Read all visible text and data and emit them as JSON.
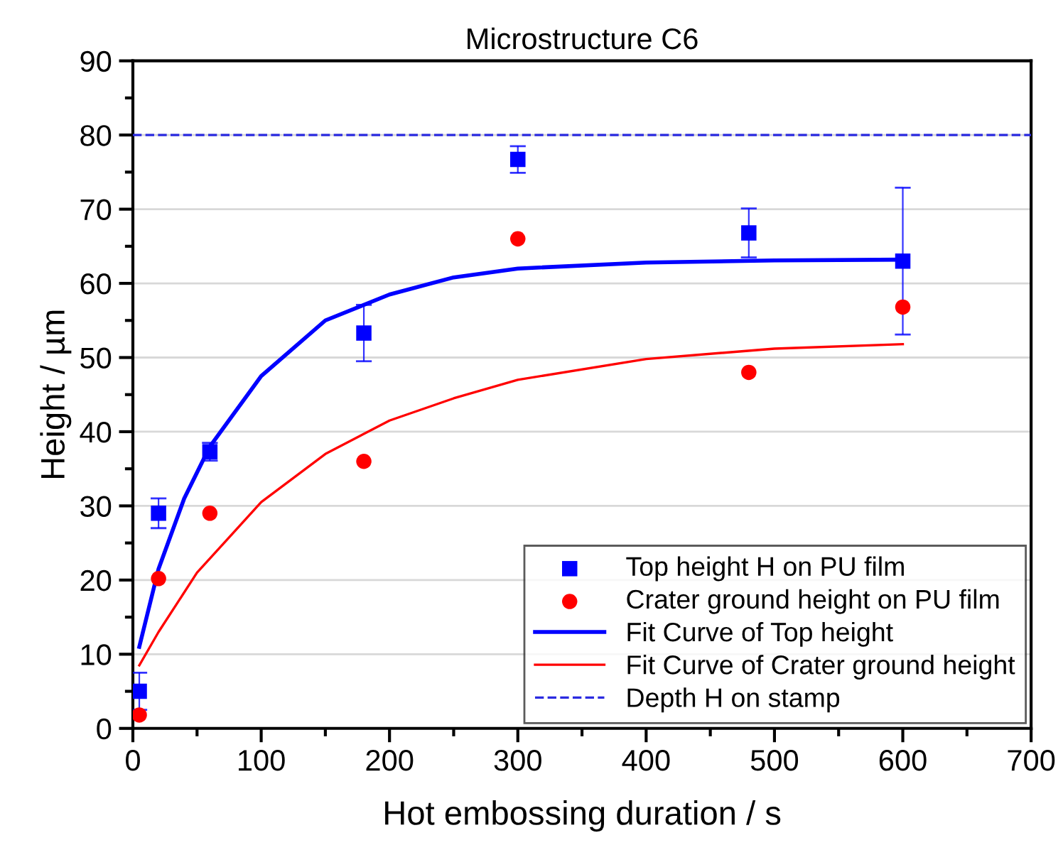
{
  "chart_data": {
    "type": "scatter",
    "title": "Microstructure C6",
    "xlabel": "Hot embossing duration / s",
    "ylabel": "Height / µm",
    "xlim": [
      0,
      700
    ],
    "xticks": [
      0,
      100,
      200,
      300,
      400,
      500,
      600,
      700
    ],
    "ylim": [
      0,
      90
    ],
    "yticks": [
      0,
      10,
      20,
      30,
      40,
      50,
      60,
      70,
      80,
      90
    ],
    "grid": "y",
    "legend": "bottom right",
    "series": [
      {
        "name": "Top height H on PU film",
        "marker": "square",
        "color": "#0000ff",
        "x": [
          5,
          20,
          60,
          180,
          300,
          480,
          600
        ],
        "values": [
          5,
          29,
          37.3,
          53.3,
          76.7,
          66.8,
          63
        ],
        "errors": [
          2.5,
          2,
          1.2,
          3.8,
          1.8,
          3.3,
          9.9
        ]
      },
      {
        "name": "Crater ground height on PU film",
        "marker": "circle",
        "color": "#ff0000",
        "x": [
          5,
          20,
          60,
          180,
          300,
          480,
          600
        ],
        "values": [
          1.8,
          20.2,
          29,
          36,
          66,
          48,
          56.8
        ]
      },
      {
        "name": "Fit Curve of Top height",
        "type": "line",
        "line_style": "solid",
        "color": "#0000ff",
        "x": [
          5,
          20,
          40,
          60,
          100,
          150,
          200,
          250,
          300,
          400,
          500,
          600
        ],
        "values": [
          11,
          21.5,
          31,
          38,
          47.5,
          55,
          58.5,
          60.8,
          62,
          62.8,
          63.1,
          63.2
        ]
      },
      {
        "name": "Fit Curve of Crater ground height",
        "type": "line",
        "line_style": "solid",
        "color": "#ff0000",
        "x": [
          5,
          20,
          50,
          100,
          150,
          200,
          250,
          300,
          400,
          500,
          600
        ],
        "values": [
          8.5,
          13,
          21,
          30.5,
          37,
          41.5,
          44.5,
          47,
          49.8,
          51.2,
          51.8
        ]
      },
      {
        "name": "Depth H on stamp",
        "type": "line",
        "line_style": "dashed",
        "color": "#2a2ae0",
        "x": [
          0,
          700
        ],
        "values": [
          80,
          80
        ]
      }
    ]
  }
}
